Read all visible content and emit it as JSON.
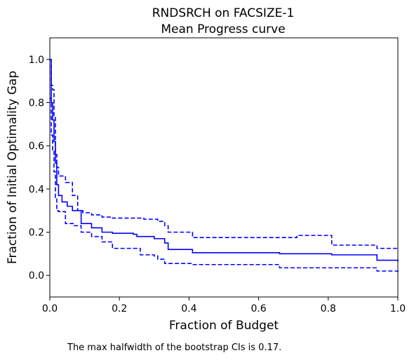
{
  "chart_data": {
    "type": "line",
    "title_line1": "RNDSRCH on FACSIZE-1",
    "title_line2": "Mean Progress curve",
    "xlabel": "Fraction of Budget",
    "ylabel": "Fraction of Initial Optimality Gap",
    "xlim": [
      0,
      1
    ],
    "ylim": [
      -0.1,
      1.1
    ],
    "xticks": [
      {
        "value": 0.0,
        "label": "0.0"
      },
      {
        "value": 0.2,
        "label": "0.2"
      },
      {
        "value": 0.4,
        "label": "0.4"
      },
      {
        "value": 0.6,
        "label": "0.6"
      },
      {
        "value": 0.8,
        "label": "0.8"
      },
      {
        "value": 1.0,
        "label": "1.0"
      }
    ],
    "yticks": [
      {
        "value": 0.0,
        "label": "0.0"
      },
      {
        "value": 0.2,
        "label": "0.2"
      },
      {
        "value": 0.4,
        "label": "0.4"
      },
      {
        "value": 0.6,
        "label": "0.6"
      },
      {
        "value": 0.8,
        "label": "0.8"
      },
      {
        "value": 1.0,
        "label": "1.0"
      }
    ],
    "grid": false,
    "series": [
      {
        "style": "solid",
        "color": "#0000ff",
        "x": [
          0,
          0.004,
          0.008,
          0.012,
          0.016,
          0.02,
          0.025,
          0.035,
          0.05,
          0.065,
          0.09,
          0.12,
          0.15,
          0.18,
          0.24,
          0.25,
          0.3,
          0.33,
          0.34,
          0.41,
          0.66,
          0.81,
          0.94,
          1.0
        ],
        "y": [
          1.0,
          0.8,
          0.72,
          0.62,
          0.52,
          0.42,
          0.37,
          0.34,
          0.32,
          0.3,
          0.24,
          0.22,
          0.2,
          0.195,
          0.19,
          0.18,
          0.17,
          0.15,
          0.12,
          0.105,
          0.1,
          0.095,
          0.07,
          0.065
        ]
      },
      {
        "style": "dashed",
        "color": "#0000ff",
        "x": [
          0,
          0.004,
          0.008,
          0.012,
          0.016,
          0.02,
          0.025,
          0.045,
          0.065,
          0.08,
          0.095,
          0.12,
          0.15,
          0.18,
          0.27,
          0.31,
          0.33,
          0.34,
          0.41,
          0.71,
          0.81,
          0.94,
          1.0
        ],
        "y": [
          1.0,
          0.88,
          0.86,
          0.74,
          0.56,
          0.5,
          0.46,
          0.43,
          0.37,
          0.3,
          0.29,
          0.28,
          0.27,
          0.265,
          0.26,
          0.25,
          0.23,
          0.2,
          0.175,
          0.185,
          0.14,
          0.125,
          0.12
        ]
      },
      {
        "style": "dashed",
        "color": "#0000ff",
        "x": [
          0,
          0.004,
          0.008,
          0.012,
          0.016,
          0.02,
          0.025,
          0.045,
          0.07,
          0.09,
          0.12,
          0.15,
          0.18,
          0.26,
          0.3,
          0.31,
          0.33,
          0.41,
          0.66,
          0.94,
          1.0
        ],
        "y": [
          0.82,
          0.65,
          0.58,
          0.48,
          0.36,
          0.3,
          0.295,
          0.24,
          0.23,
          0.2,
          0.18,
          0.155,
          0.125,
          0.095,
          0.09,
          0.075,
          0.055,
          0.05,
          0.035,
          0.02,
          0.015
        ]
      }
    ],
    "footnote": "The max halfwidth of the bootstrap CIs is 0.17."
  }
}
